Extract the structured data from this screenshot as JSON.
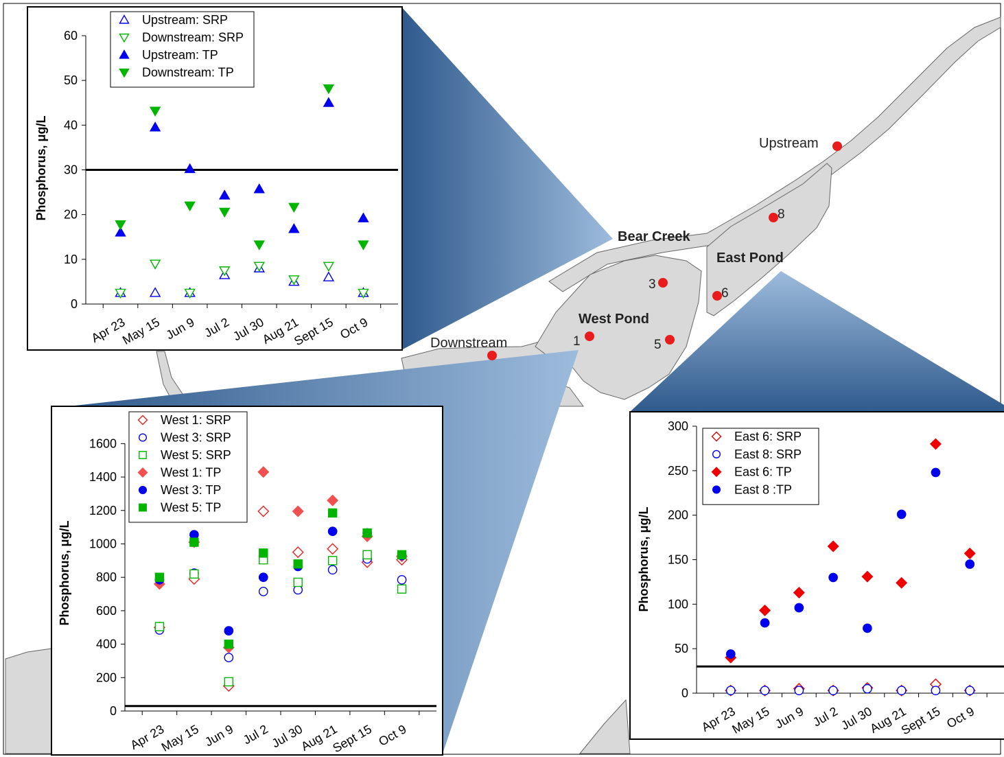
{
  "map": {
    "labels": {
      "upstream": "Upstream",
      "downstream": "Downstream",
      "bear_creek": "Bear Creek",
      "east_pond": "East Pond",
      "west_pond": "West Pond",
      "site_1": "1",
      "site_3": "3",
      "site_5": "5",
      "site_6": "6",
      "site_8": "8"
    },
    "colors": {
      "land": "#d9d9d9",
      "site_marker": "#e81c1c",
      "callout_dark": "#2f5a8c",
      "callout_light": "#9dbbdc"
    }
  },
  "chart_data": [
    {
      "id": "stream",
      "type": "scatter",
      "categories": [
        "Apr 23",
        "May 15",
        "Jun 9",
        "Jul 2",
        "Jul 30",
        "Aug 21",
        "Sept 15",
        "Oct 9"
      ],
      "ylabel": "Phosphorus, μg/L",
      "ylim": [
        0,
        60
      ],
      "yticks": [
        0,
        10,
        20,
        30,
        40,
        50,
        60
      ],
      "reference_line": 30,
      "legend_position": "top-left",
      "series": [
        {
          "name": "Upstream: SRP",
          "marker": "triangle-up",
          "filled": false,
          "color": "#0000ee",
          "values": [
            2.5,
            2.5,
            2.5,
            6.5,
            8,
            5,
            6,
            2.5
          ]
        },
        {
          "name": "Downstream: SRP",
          "marker": "triangle-down",
          "filled": false,
          "color": "#00b400",
          "values": [
            2.5,
            9,
            2.5,
            7.5,
            8.5,
            5.5,
            8.5,
            2.5
          ]
        },
        {
          "name": "Upstream: TP",
          "marker": "triangle-up",
          "filled": true,
          "color": "#0000ee",
          "values": [
            16,
            39.5,
            30.2,
            24.3,
            25.7,
            16.8,
            45,
            19.2
          ]
        },
        {
          "name": "Downstream: TP",
          "marker": "triangle-down",
          "filled": true,
          "color": "#00b400",
          "values": [
            17.8,
            43.2,
            22,
            20.6,
            13.3,
            21.7,
            48.2,
            13.3
          ]
        }
      ]
    },
    {
      "id": "west",
      "type": "scatter",
      "categories": [
        "Apr 23",
        "May 15",
        "Jun 9",
        "Jul 2",
        "Jul 30",
        "Aug 21",
        "Sept 15",
        "Oct 9"
      ],
      "ylabel": "Phosphorus, μg/L",
      "ylim": [
        0,
        1700
      ],
      "yticks": [
        0,
        200,
        400,
        600,
        800,
        1000,
        1200,
        1400,
        1600
      ],
      "reference_line": 30,
      "legend_position": "top-left",
      "series": [
        {
          "name": "West 1: SRP",
          "marker": "diamond",
          "filled": false,
          "color": "#ee2222",
          "values": [
            500,
            790,
            150,
            1195,
            950,
            970,
            890,
            905
          ]
        },
        {
          "name": "West 3: SRP",
          "marker": "circle",
          "filled": false,
          "color": "#0000ee",
          "values": [
            485,
            825,
            320,
            715,
            725,
            845,
            910,
            785
          ]
        },
        {
          "name": "West 5: SRP",
          "marker": "square",
          "filled": false,
          "color": "#00b400",
          "values": [
            505,
            820,
            175,
            905,
            770,
            900,
            935,
            730
          ]
        },
        {
          "name": "West 1: TP",
          "marker": "diamond",
          "filled": true,
          "color": "#f05050",
          "values": [
            760,
            1010,
            380,
            1430,
            1195,
            1260,
            1045,
            925
          ]
        },
        {
          "name": "West 3: TP",
          "marker": "circle",
          "filled": true,
          "color": "#0000ee",
          "values": [
            785,
            1055,
            480,
            800,
            865,
            1075,
            1065,
            930
          ]
        },
        {
          "name": "West 5: TP",
          "marker": "square",
          "filled": true,
          "color": "#00b400",
          "values": [
            800,
            1010,
            400,
            945,
            880,
            1185,
            1065,
            935
          ]
        }
      ]
    },
    {
      "id": "east",
      "type": "scatter",
      "categories": [
        "Apr 23",
        "May 15",
        "Jun 9",
        "Jul 2",
        "Jul 30",
        "Aug 21",
        "Sept 15",
        "Oct 9"
      ],
      "ylabel": "Phosphorus, μg/L",
      "ylim": [
        0,
        300
      ],
      "yticks": [
        0,
        50,
        100,
        150,
        200,
        250,
        300
      ],
      "reference_line": 30,
      "legend_position": "top-left",
      "series": [
        {
          "name": "East 6: SRP",
          "marker": "diamond",
          "filled": false,
          "color": "#ee0000",
          "values": [
            3,
            3,
            5,
            3,
            6,
            3,
            10,
            3
          ]
        },
        {
          "name": "East 8: SRP",
          "marker": "circle",
          "filled": false,
          "color": "#0000ee",
          "values": [
            3,
            3,
            3,
            3,
            5,
            3,
            3,
            3
          ]
        },
        {
          "name": "East 6: TP",
          "marker": "diamond",
          "filled": true,
          "color": "#ee0000",
          "values": [
            40,
            93,
            113,
            165,
            131,
            124,
            280,
            157
          ]
        },
        {
          "name": "East 8 :TP",
          "marker": "circle",
          "filled": true,
          "color": "#0000ee",
          "values": [
            44,
            79,
            96,
            130,
            73,
            201,
            248,
            145
          ]
        }
      ]
    }
  ]
}
